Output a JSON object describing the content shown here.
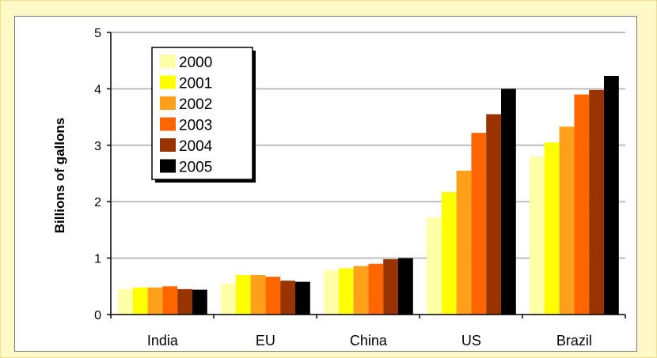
{
  "chart_data": {
    "type": "bar",
    "title": "",
    "xlabel": "",
    "ylabel": "Billions of gallons",
    "ylim": [
      0,
      5
    ],
    "yticks": [
      "0",
      "1",
      "2",
      "3",
      "4",
      "5"
    ],
    "grid": true,
    "legend_position": "top-left",
    "categories": [
      "India",
      "EU",
      "China",
      "US",
      "Brazil"
    ],
    "series": [
      {
        "name": "2000",
        "color": "#ffffa8",
        "values": [
          0.45,
          0.55,
          0.78,
          1.72,
          2.8
        ]
      },
      {
        "name": "2001",
        "color": "#ffff00",
        "values": [
          0.48,
          0.7,
          0.82,
          2.17,
          3.05
        ]
      },
      {
        "name": "2002",
        "color": "#ffa01a",
        "values": [
          0.48,
          0.7,
          0.86,
          2.55,
          3.33
        ]
      },
      {
        "name": "2003",
        "color": "#ff6600",
        "values": [
          0.5,
          0.67,
          0.9,
          3.22,
          3.9
        ]
      },
      {
        "name": "2004",
        "color": "#993300",
        "values": [
          0.45,
          0.6,
          0.98,
          3.55,
          3.98
        ]
      },
      {
        "name": "2005",
        "color": "#000000",
        "values": [
          0.44,
          0.58,
          1.0,
          4.0,
          4.23
        ]
      }
    ]
  }
}
